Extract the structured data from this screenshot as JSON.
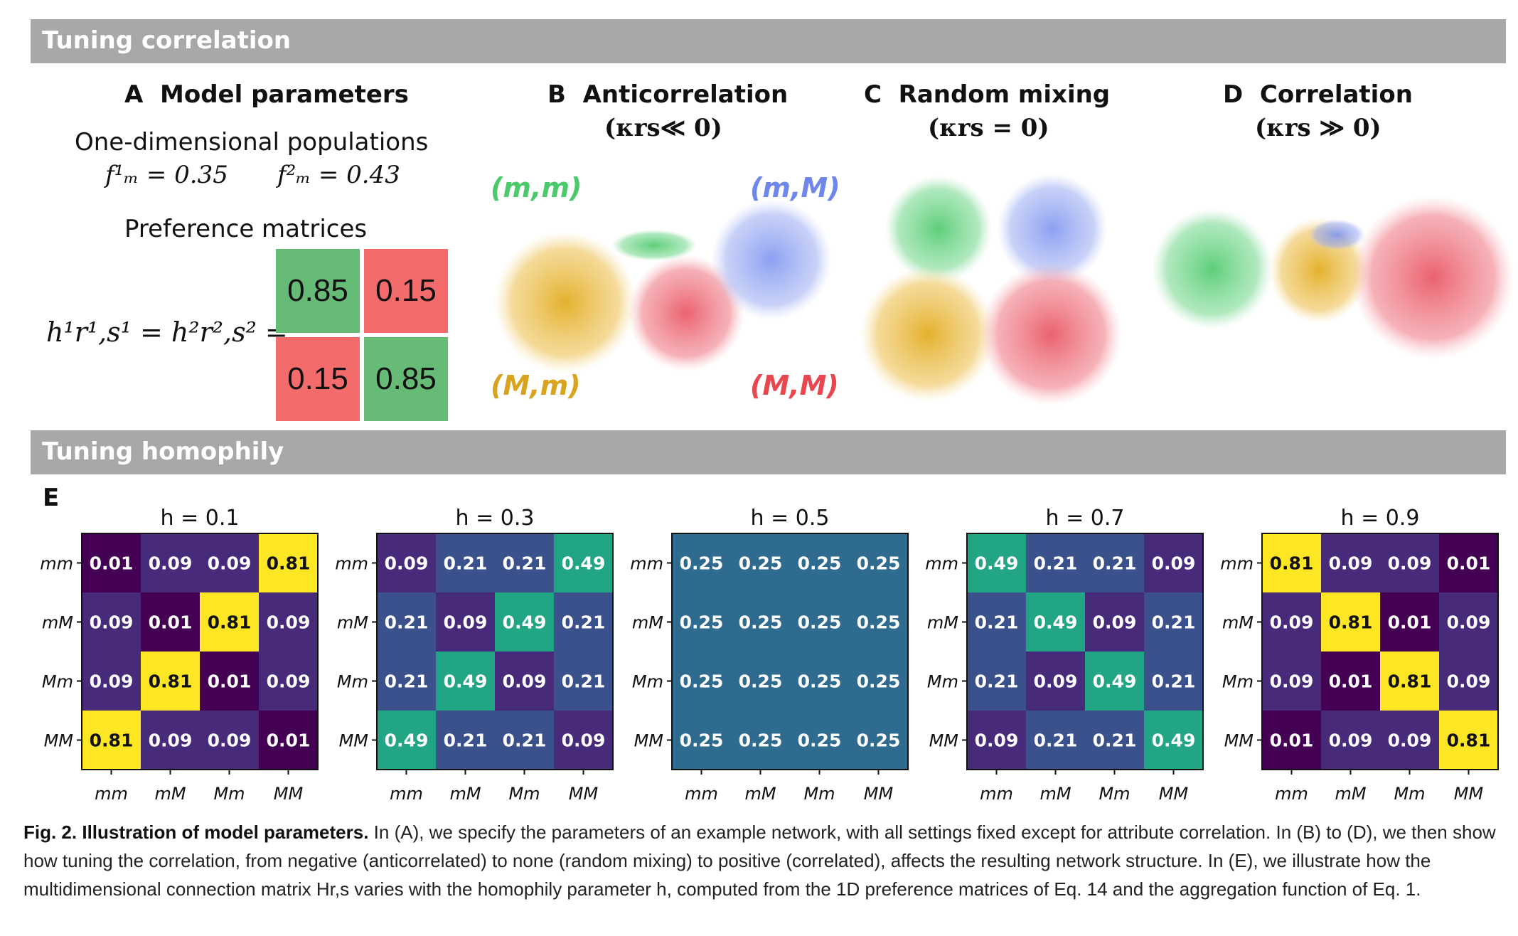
{
  "sections": {
    "tuning_correlation": "Tuning correlation",
    "tuning_homophily": "Tuning homophily"
  },
  "panel_a": {
    "letter": "A",
    "title": "Model parameters",
    "populations_label": "One-dimensional populations",
    "f1": "f¹ₘ = 0.35",
    "f2": "f²ₘ = 0.43",
    "pref_label": "Preference matrices",
    "h_eq": "h¹r¹,s¹ = h²r²,s² =",
    "matrix": [
      "0.85",
      "0.15",
      "0.15",
      "0.85"
    ],
    "colors": {
      "high": "#66bb77",
      "low": "#f46b6b"
    }
  },
  "panel_b": {
    "letter": "B",
    "title": "Anticorrelation",
    "sub": "(κrs≪ 0)",
    "groups": {
      "mm": "(m,m)",
      "mM": "(m,M)",
      "Mm": "(M,m)",
      "MM": "(M,M)"
    }
  },
  "panel_c": {
    "letter": "C",
    "title": "Random mixing",
    "sub": "(κrs = 0)"
  },
  "panel_d": {
    "letter": "D",
    "title": "Correlation",
    "sub": "(κrs ≫ 0)"
  },
  "group_colors": {
    "mm": "#4cc96a",
    "mM": "#7f95f0",
    "Mm": "#e8b630",
    "MM": "#ec6470"
  },
  "panel_e": {
    "letter": "E",
    "row_labels": [
      "mm",
      "mM",
      "Mm",
      "MM"
    ],
    "col_labels": [
      "mm",
      "mM",
      "Mm",
      "MM"
    ],
    "matrices": [
      {
        "title": "h = 0.1",
        "values": [
          [
            "0.01",
            "0.09",
            "0.09",
            "0.81"
          ],
          [
            "0.09",
            "0.01",
            "0.81",
            "0.09"
          ],
          [
            "0.09",
            "0.81",
            "0.01",
            "0.09"
          ],
          [
            "0.81",
            "0.09",
            "0.09",
            "0.01"
          ]
        ]
      },
      {
        "title": "h = 0.3",
        "values": [
          [
            "0.09",
            "0.21",
            "0.21",
            "0.49"
          ],
          [
            "0.21",
            "0.09",
            "0.49",
            "0.21"
          ],
          [
            "0.21",
            "0.49",
            "0.09",
            "0.21"
          ],
          [
            "0.49",
            "0.21",
            "0.21",
            "0.09"
          ]
        ]
      },
      {
        "title": "h = 0.5",
        "values": [
          [
            "0.25",
            "0.25",
            "0.25",
            "0.25"
          ],
          [
            "0.25",
            "0.25",
            "0.25",
            "0.25"
          ],
          [
            "0.25",
            "0.25",
            "0.25",
            "0.25"
          ],
          [
            "0.25",
            "0.25",
            "0.25",
            "0.25"
          ]
        ]
      },
      {
        "title": "h = 0.7",
        "values": [
          [
            "0.49",
            "0.21",
            "0.21",
            "0.09"
          ],
          [
            "0.21",
            "0.49",
            "0.09",
            "0.21"
          ],
          [
            "0.21",
            "0.09",
            "0.49",
            "0.21"
          ],
          [
            "0.09",
            "0.21",
            "0.21",
            "0.49"
          ]
        ]
      },
      {
        "title": "h = 0.9",
        "values": [
          [
            "0.81",
            "0.09",
            "0.09",
            "0.01"
          ],
          [
            "0.09",
            "0.81",
            "0.01",
            "0.09"
          ],
          [
            "0.09",
            "0.01",
            "0.81",
            "0.09"
          ],
          [
            "0.01",
            "0.09",
            "0.09",
            "0.81"
          ]
        ]
      }
    ]
  },
  "caption": {
    "lead": "Fig. 2. Illustration of model parameters.",
    "body": " In (A), we specify the parameters of an example network, with all settings fixed except for attribute correlation. In (B) to (D), we then show how tuning the correlation, from negative (anticorrelated) to none (random mixing) to positive (correlated), affects the resulting network structure. In (E), we illustrate how the multidimensional connection matrix Hr,s varies with the homophily parameter h, computed from the 1D preference matrices of Eq. 14 and the aggregation function of Eq. 1."
  }
}
